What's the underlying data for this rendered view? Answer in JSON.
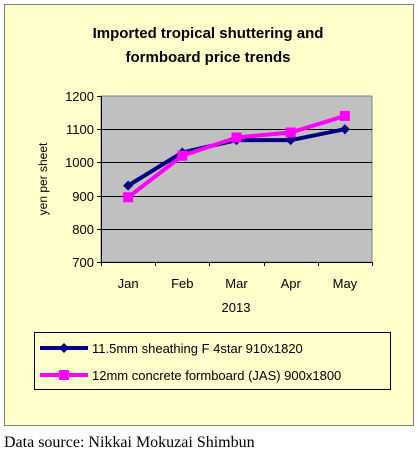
{
  "chart_data": {
    "type": "line",
    "title_lines": [
      "Imported tropical shuttering and",
      "formboard price trends"
    ],
    "xlabel": "2013",
    "ylabel": "yen per sheet",
    "categories": [
      "Jan",
      "Feb",
      "Mar",
      "Apr",
      "May"
    ],
    "ylim": [
      700,
      1200
    ],
    "yticks": [
      700,
      800,
      900,
      1000,
      1100,
      1200
    ],
    "grid": true,
    "legend_position": "bottom",
    "series": [
      {
        "name": "11.5mm sheathing F 4star 910x1820",
        "values": [
          930,
          1030,
          1067,
          1067,
          1100
        ],
        "color": "#000080",
        "marker": "diamond"
      },
      {
        "name": "12mm concrete formboard (JAS) 900x1800",
        "values": [
          895,
          1020,
          1075,
          1090,
          1140
        ],
        "color": "#ff00ff",
        "marker": "square"
      }
    ]
  },
  "colors": {
    "panel_background": "#ffffcc",
    "plot_background": "#c0c0c0",
    "frame": "#808080",
    "gridline": "#000000"
  },
  "source_note": "Data source: Nikkai Mokuzai Shimbun"
}
